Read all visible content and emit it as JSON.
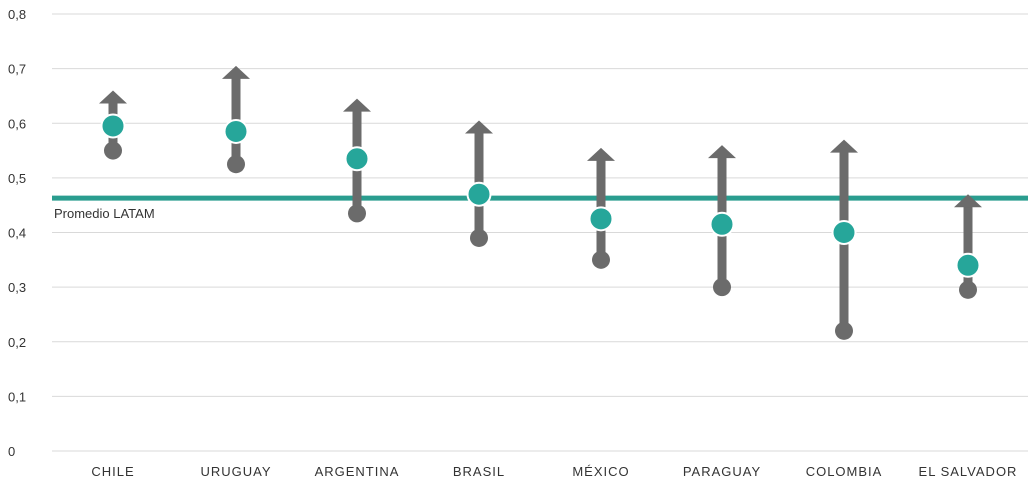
{
  "chart_data": {
    "type": "range-arrow",
    "title": "",
    "xlabel": "",
    "ylabel": "",
    "ylim": [
      0,
      0.8
    ],
    "yticks": [
      {
        "value": 0,
        "label": "0"
      },
      {
        "value": 0.1,
        "label": "0,1"
      },
      {
        "value": 0.2,
        "label": "0,2"
      },
      {
        "value": 0.3,
        "label": "0,3"
      },
      {
        "value": 0.4,
        "label": "0,4"
      },
      {
        "value": 0.5,
        "label": "0,5"
      },
      {
        "value": 0.6,
        "label": "0,6"
      },
      {
        "value": 0.7,
        "label": "0,7"
      },
      {
        "value": 0.8,
        "label": "0,8"
      }
    ],
    "grid": true,
    "categories": [
      "CHILE",
      "URUGUAY",
      "ARGENTINA",
      "BRASIL",
      "MÉXICO",
      "PARAGUAY",
      "COLOMBIA",
      "EL SALVADOR"
    ],
    "series": [
      {
        "values_low": [
          0.55,
          0.525,
          0.435,
          0.39,
          0.35,
          0.3,
          0.22,
          0.295
        ]
      },
      {
        "values_high": [
          0.66,
          0.705,
          0.645,
          0.605,
          0.555,
          0.56,
          0.57,
          0.47
        ]
      },
      {
        "values_mid": [
          0.595,
          0.585,
          0.535,
          0.47,
          0.425,
          0.415,
          0.4,
          0.34
        ]
      }
    ],
    "reference_line": {
      "label": "Promedio LATAM",
      "value": 0.463
    },
    "colors": {
      "range": "#6b6b6b",
      "point": "#26a69a",
      "reference": "#2a9d8f",
      "grid": "#d9d9d9"
    }
  }
}
